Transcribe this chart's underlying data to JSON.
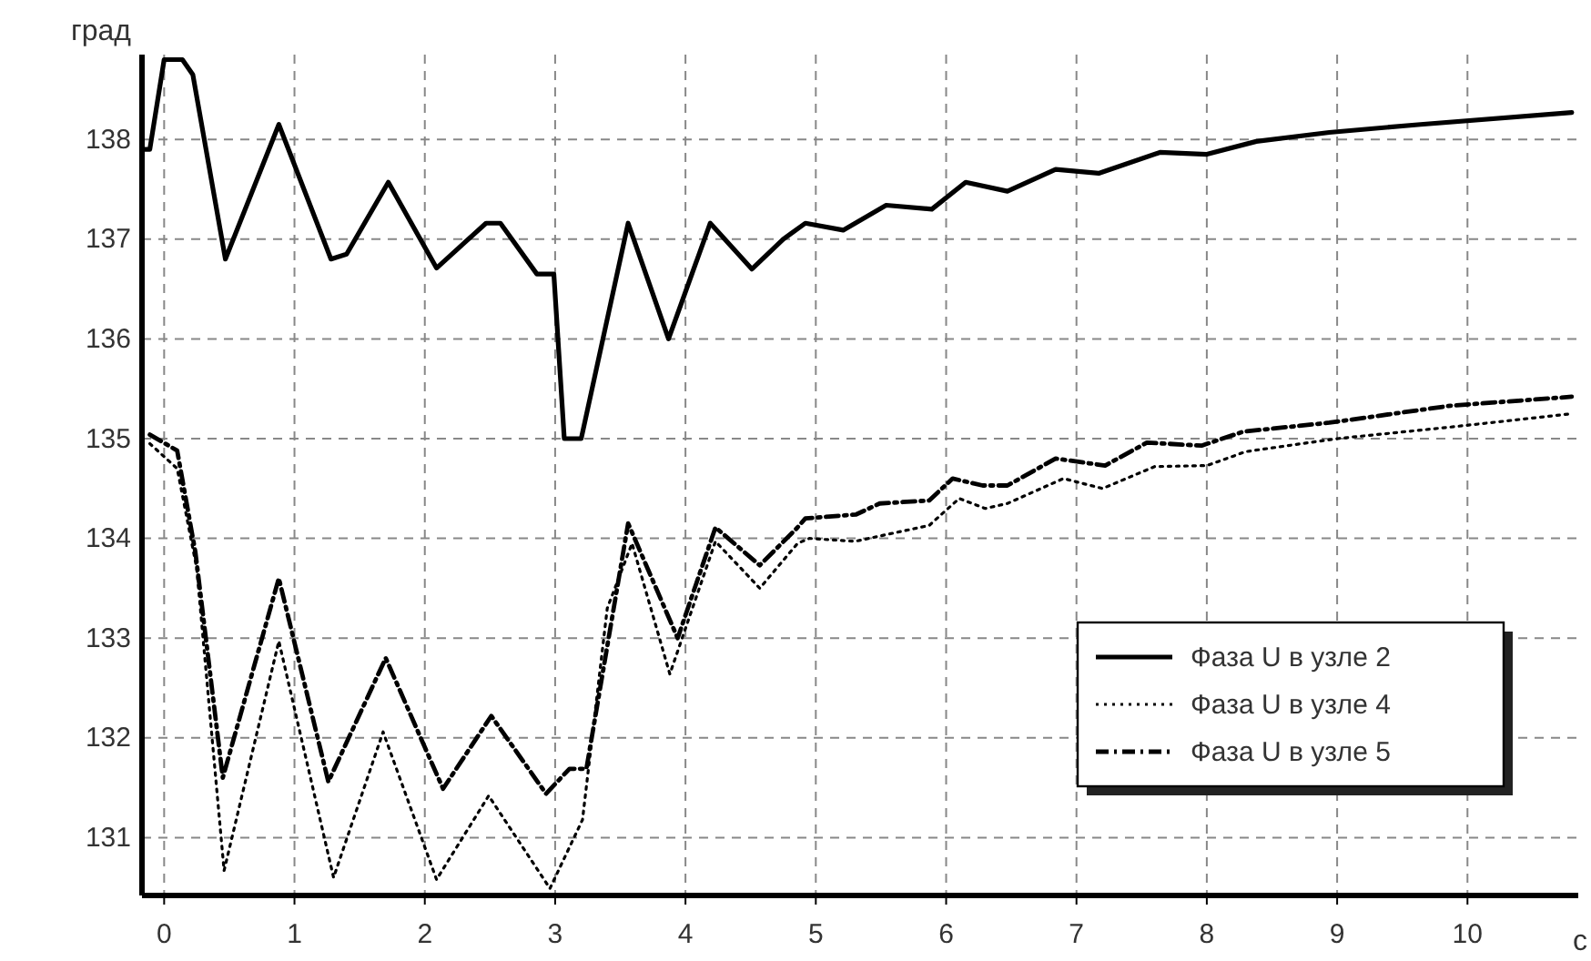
{
  "chart_data": {
    "type": "line",
    "xlabel": "с",
    "ylabel": "град",
    "xlim": [
      -0.17,
      10.85
    ],
    "ylim": [
      130.42,
      138.85
    ],
    "xticks": [
      0,
      1,
      2,
      3,
      4,
      5,
      6,
      7,
      8,
      9,
      10
    ],
    "yticks": [
      131,
      132,
      133,
      134,
      135,
      136,
      137,
      138
    ],
    "grid": true,
    "legend": "bottom right",
    "marker": "none",
    "series": [
      {
        "name": "Фаза U в узле 2",
        "color": "#000000",
        "line_style": "solid",
        "x": [
          -0.17,
          -0.11,
          0,
          0.14,
          0.22,
          0.47,
          0.88,
          1.28,
          1.4,
          1.72,
          2.09,
          2.47,
          2.58,
          2.86,
          2.99,
          3.07,
          3.2,
          3.56,
          3.87,
          4.19,
          4.51,
          4.75,
          4.92,
          5.21,
          5.54,
          5.89,
          6.15,
          6.47,
          6.84,
          7.17,
          7.64,
          8.0,
          8.38,
          8.94,
          9.64,
          10.8
        ],
        "values": [
          137.9,
          137.9,
          138.8,
          138.8,
          138.65,
          136.8,
          138.15,
          136.8,
          136.85,
          137.57,
          136.71,
          137.16,
          137.16,
          136.65,
          136.65,
          135.0,
          135.0,
          137.16,
          136.0,
          137.16,
          136.7,
          137.0,
          137.16,
          137.09,
          137.34,
          137.3,
          137.57,
          137.48,
          137.7,
          137.66,
          137.87,
          137.85,
          137.98,
          138.07,
          138.15,
          138.27
        ]
      },
      {
        "name": "Фаза U в узле 4",
        "color": "#000000",
        "line_style": "dotted",
        "x": [
          -0.11,
          0.1,
          0.25,
          0.46,
          0.88,
          1.3,
          1.68,
          2.09,
          2.49,
          2.96,
          3.21,
          3.4,
          3.59,
          3.88,
          4.23,
          4.57,
          4.86,
          4.95,
          5.3,
          5.87,
          6.1,
          6.3,
          6.47,
          6.9,
          7.2,
          7.6,
          8.0,
          8.3,
          9.0,
          9.9,
          10.8
        ],
        "values": [
          134.95,
          134.7,
          133.7,
          130.67,
          132.97,
          130.6,
          132.06,
          130.58,
          131.42,
          130.49,
          131.18,
          133.3,
          133.95,
          132.64,
          133.97,
          133.5,
          133.95,
          134.0,
          133.97,
          134.13,
          134.4,
          134.3,
          134.35,
          134.6,
          134.5,
          134.72,
          134.73,
          134.87,
          135.0,
          135.12,
          135.25
        ]
      },
      {
        "name": "Фаза U в узле 5",
        "color": "#000000",
        "line_style": "dashdot",
        "x": [
          -0.11,
          0.1,
          0.24,
          0.45,
          0.88,
          1.26,
          1.7,
          2.14,
          2.51,
          2.93,
          3.11,
          3.24,
          3.56,
          3.94,
          4.23,
          4.57,
          4.86,
          4.92,
          5.31,
          5.49,
          5.87,
          6.05,
          6.28,
          6.47,
          6.84,
          7.22,
          7.54,
          7.96,
          8.28,
          8.94,
          9.87,
          10.8
        ],
        "values": [
          135.04,
          134.88,
          133.86,
          131.6,
          133.6,
          131.56,
          132.8,
          131.49,
          132.22,
          131.44,
          131.69,
          131.69,
          134.15,
          133.0,
          134.11,
          133.73,
          134.11,
          134.2,
          134.24,
          134.35,
          134.38,
          134.6,
          134.53,
          134.53,
          134.8,
          134.73,
          134.96,
          134.93,
          135.07,
          135.16,
          135.33,
          135.42
        ]
      }
    ]
  }
}
